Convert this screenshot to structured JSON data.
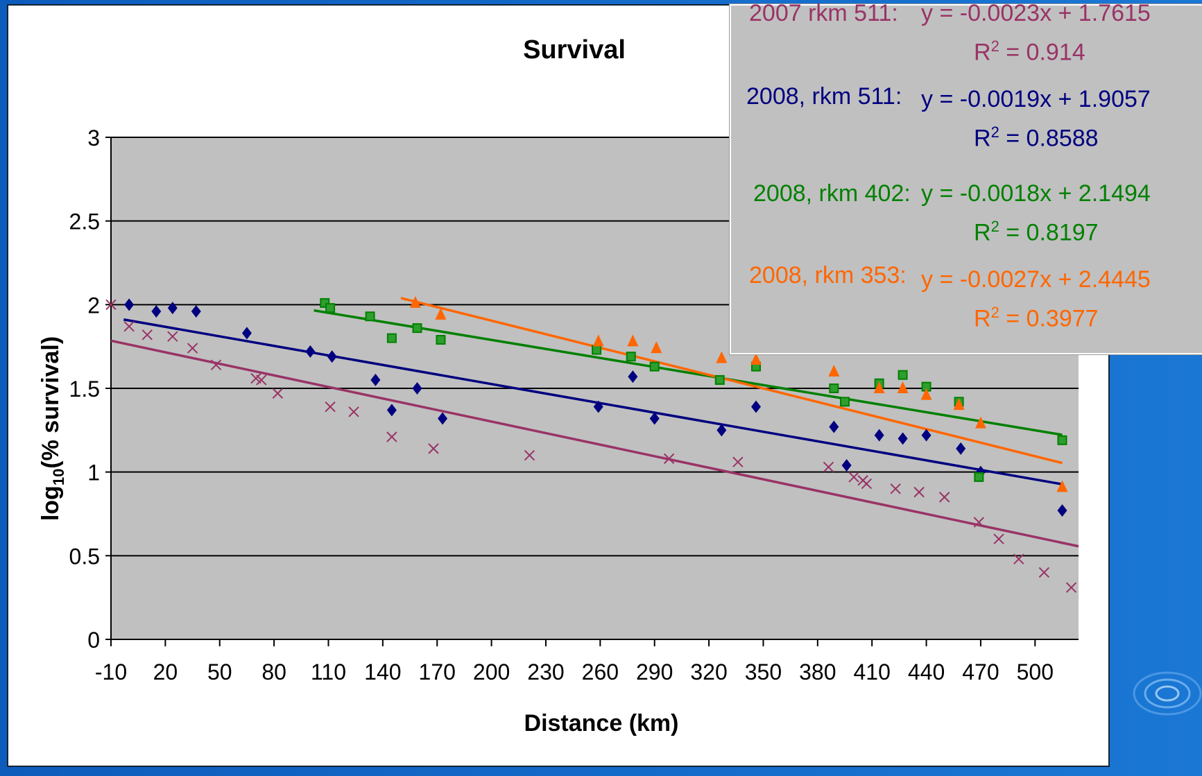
{
  "chart_data": {
    "type": "scatter",
    "title": "Survival",
    "xlabel": "Distance (km)",
    "ylabel": "log10(% survival)",
    "ylabel_main": "log",
    "ylabel_sub": "10",
    "ylabel_rest": "(% survival)",
    "xlim": [
      -10,
      524
    ],
    "ylim": [
      0,
      3
    ],
    "x_ticks": [
      -10,
      20,
      50,
      80,
      110,
      140,
      170,
      200,
      230,
      260,
      290,
      320,
      350,
      380,
      410,
      440,
      470,
      500
    ],
    "x_tick_labels": [
      "-10",
      "20",
      "50",
      "80",
      "110",
      "140",
      "170",
      "200",
      "230",
      "260",
      "290",
      "320",
      "350",
      "380",
      "410",
      "440",
      "470",
      "500"
    ],
    "y_ticks": [
      0,
      0.5,
      1,
      1.5,
      2,
      2.5,
      3
    ],
    "y_tick_labels": [
      "0",
      "0.5",
      "1",
      "1.5",
      "2",
      "2.5",
      "3"
    ],
    "grid": true,
    "series": [
      {
        "name": "2007 rkm 511",
        "color": "#993366",
        "marker": "x",
        "points": [
          [
            -10,
            2.0
          ],
          [
            0,
            1.87
          ],
          [
            10,
            1.82
          ],
          [
            24,
            1.81
          ],
          [
            35,
            1.74
          ],
          [
            48,
            1.64
          ],
          [
            70,
            1.56
          ],
          [
            73,
            1.55
          ],
          [
            82,
            1.47
          ],
          [
            111,
            1.39
          ],
          [
            124,
            1.36
          ],
          [
            145,
            1.21
          ],
          [
            168,
            1.14
          ],
          [
            221,
            1.1
          ],
          [
            298,
            1.08
          ],
          [
            336,
            1.06
          ],
          [
            386,
            1.03
          ],
          [
            400,
            0.97
          ],
          [
            405,
            0.95
          ],
          [
            407,
            0.93
          ],
          [
            423,
            0.9
          ],
          [
            436,
            0.88
          ],
          [
            450,
            0.85
          ],
          [
            469,
            0.7
          ],
          [
            480,
            0.6
          ],
          [
            491,
            0.48
          ],
          [
            505,
            0.4
          ],
          [
            520,
            0.31
          ]
        ],
        "trend": {
          "slope": -0.0023,
          "intercept": 1.7615,
          "x_range": [
            -10,
            524
          ]
        }
      },
      {
        "name": "2008, rkm 511",
        "color": "#000080",
        "marker": "diamond",
        "points": [
          [
            0,
            2.0
          ],
          [
            15,
            1.96
          ],
          [
            24,
            1.98
          ],
          [
            37,
            1.96
          ],
          [
            65,
            1.83
          ],
          [
            100,
            1.72
          ],
          [
            112,
            1.69
          ],
          [
            136,
            1.55
          ],
          [
            145,
            1.37
          ],
          [
            159,
            1.5
          ],
          [
            173,
            1.32
          ],
          [
            259,
            1.39
          ],
          [
            278,
            1.57
          ],
          [
            290,
            1.32
          ],
          [
            327,
            1.25
          ],
          [
            346,
            1.39
          ],
          [
            389,
            1.27
          ],
          [
            396,
            1.04
          ],
          [
            414,
            1.22
          ],
          [
            427,
            1.2
          ],
          [
            440,
            1.22
          ],
          [
            459,
            1.14
          ],
          [
            470,
            1.0
          ],
          [
            515,
            0.77
          ]
        ],
        "trend": {
          "slope": -0.0019,
          "intercept": 1.9057,
          "x_range": [
            -3,
            515
          ]
        }
      },
      {
        "name": "2008, rkm 402",
        "color": "#008000",
        "marker": "square",
        "points": [
          [
            108,
            2.01
          ],
          [
            111,
            1.98
          ],
          [
            133,
            1.93
          ],
          [
            145,
            1.8
          ],
          [
            159,
            1.86
          ],
          [
            172,
            1.79
          ],
          [
            258,
            1.73
          ],
          [
            277,
            1.69
          ],
          [
            290,
            1.63
          ],
          [
            326,
            1.55
          ],
          [
            346,
            1.63
          ],
          [
            389,
            1.5
          ],
          [
            395,
            1.42
          ],
          [
            414,
            1.53
          ],
          [
            427,
            1.58
          ],
          [
            440,
            1.51
          ],
          [
            458,
            1.42
          ],
          [
            469,
            0.97
          ],
          [
            515,
            1.19
          ]
        ],
        "trend": {
          "slope": -0.0018,
          "intercept": 2.1494,
          "x_range": [
            102,
            515
          ]
        }
      },
      {
        "name": "2008, rkm 353",
        "color": "#ff6600",
        "marker": "triangle",
        "points": [
          [
            158,
            2.01
          ],
          [
            172,
            1.94
          ],
          [
            259,
            1.78
          ],
          [
            278,
            1.78
          ],
          [
            291,
            1.74
          ],
          [
            327,
            1.68
          ],
          [
            346,
            1.67
          ],
          [
            389,
            1.6
          ],
          [
            414,
            1.5
          ],
          [
            427,
            1.5
          ],
          [
            440,
            1.46
          ],
          [
            458,
            1.4
          ],
          [
            470,
            1.29
          ],
          [
            515,
            0.91
          ]
        ],
        "trend": {
          "slope": -0.0027,
          "intercept": 2.4445,
          "x_range": [
            150,
            515
          ]
        }
      }
    ]
  },
  "equations": [
    {
      "label": "2007 rkm 511:",
      "eq": "y = -0.0023x + 1.7615",
      "r2_base": "R",
      "r2_sup": "2",
      "r2_value": " = 0.914",
      "color": "#993366"
    },
    {
      "label": "2008, rkm 511:",
      "eq": "y = -0.0019x + 1.9057",
      "r2_base": "R",
      "r2_sup": "2",
      "r2_value": " = 0.8588",
      "color": "#000080"
    },
    {
      "label": "2008, rkm 402:",
      "eq": "y = -0.0018x + 2.1494",
      "r2_base": "R",
      "r2_sup": "2",
      "r2_value": " = 0.8197",
      "color": "#008000"
    },
    {
      "label": "2008, rkm 353:",
      "eq": "y = -0.0027x + 2.4445",
      "r2_base": "R",
      "r2_sup": "2",
      "r2_value": " = 0.3977",
      "color": "#ff6600"
    }
  ]
}
